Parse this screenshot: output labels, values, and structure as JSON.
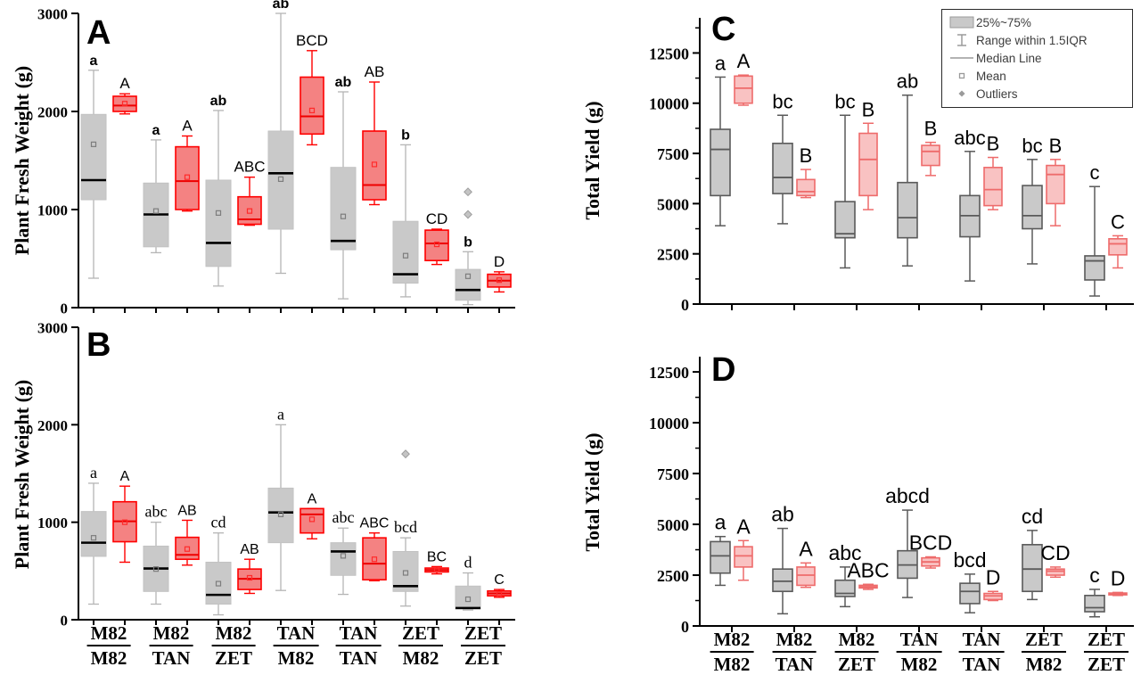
{
  "figure": {
    "description": "Four-panel box plot figure comparing grafting combinations (scion/rootstock) of M82, TAN, ZET tomato lines"
  },
  "legend": {
    "items": [
      {
        "icon": "box-swatch-icon",
        "label": "25%~75%"
      },
      {
        "icon": "whisker-icon",
        "label": "Range within 1.5IQR"
      },
      {
        "icon": "median-line-icon",
        "label": "Median Line"
      },
      {
        "icon": "mean-square-icon",
        "label": "Mean"
      },
      {
        "icon": "outlier-diamond-icon",
        "label": "Outliers"
      }
    ]
  },
  "colors": {
    "gray_fill": "#c9c9c9",
    "grayAB_edge": "#c2c2c2",
    "grayAB_whisker": "#b5b5b5",
    "grayAB_median": "#000000",
    "grayAB_mean": "#7d7d7d",
    "redAB_fill": "#f48282",
    "redAB_edge": "#ff0000",
    "redAB_median": "#ee0000",
    "redAB_mean": "#ff2a2a",
    "grayCD_edge": "#5a5a5a",
    "grayCD_median": "#5a5a5a",
    "redCD_fill": "#f9c2c2",
    "redCD_edge": "#ee6b6b",
    "redCD_median": "#ee6b6b",
    "outlier_fill": "#c4c4c4",
    "outlier_edge": "#9e9e9e",
    "axis": "#000000"
  },
  "chart_data": [
    {
      "id": "A",
      "panel_label": "A",
      "type": "box",
      "ylabel": "Plant Fresh Weight (g)",
      "ylim": [
        0,
        3000
      ],
      "yticks": [
        0,
        1000,
        2000,
        3000
      ],
      "minor_step": null,
      "categories": [
        {
          "top": "M82",
          "bottom": "M82"
        },
        {
          "top": "M82",
          "bottom": "TAN"
        },
        {
          "top": "M82",
          "bottom": "ZET"
        },
        {
          "top": "TAN",
          "bottom": "M82"
        },
        {
          "top": "TAN",
          "bottom": "TAN"
        },
        {
          "top": "ZET",
          "bottom": "M82"
        },
        {
          "top": "ZET",
          "bottom": "ZET"
        }
      ],
      "series": [
        {
          "name": "gray",
          "style": "grayAB",
          "boxes": [
            {
              "lo": 300,
              "q1": 1100,
              "med": 1300,
              "q3": 1970,
              "hi": 2420,
              "mean": 1665,
              "letter": "a",
              "out": []
            },
            {
              "lo": 560,
              "q1": 620,
              "med": 950,
              "q3": 1270,
              "hi": 1710,
              "mean": 985,
              "letter": "a",
              "out": []
            },
            {
              "lo": 220,
              "q1": 420,
              "med": 660,
              "q3": 1300,
              "hi": 2010,
              "mean": 965,
              "letter": "ab",
              "out": []
            },
            {
              "lo": 350,
              "q1": 800,
              "med": 1370,
              "q3": 1800,
              "hi": 3000,
              "mean": 1310,
              "letter": "ab",
              "out": []
            },
            {
              "lo": 90,
              "q1": 590,
              "med": 680,
              "q3": 1430,
              "hi": 2200,
              "mean": 930,
              "letter": "ab",
              "out": []
            },
            {
              "lo": 110,
              "q1": 250,
              "med": 340,
              "q3": 880,
              "hi": 1660,
              "mean": 530,
              "letter": "b",
              "out": []
            },
            {
              "lo": 30,
              "q1": 75,
              "med": 180,
              "q3": 390,
              "hi": 570,
              "mean": 320,
              "letter": "b",
              "out": [
                950,
                1180
              ]
            }
          ]
        },
        {
          "name": "red",
          "style": "redAB",
          "boxes": [
            {
              "lo": 1975,
              "q1": 2000,
              "med": 2060,
              "q3": 2155,
              "hi": 2180,
              "mean": 2080,
              "letter": "A",
              "out": []
            },
            {
              "lo": 985,
              "q1": 1000,
              "med": 1290,
              "q3": 1640,
              "hi": 1750,
              "mean": 1330,
              "letter": "A",
              "out": []
            },
            {
              "lo": 840,
              "q1": 850,
              "med": 900,
              "q3": 1130,
              "hi": 1330,
              "mean": 985,
              "letter": "ABC",
              "out": []
            },
            {
              "lo": 1660,
              "q1": 1770,
              "med": 1950,
              "q3": 2350,
              "hi": 2620,
              "mean": 2010,
              "letter": "BCD",
              "out": []
            },
            {
              "lo": 1050,
              "q1": 1100,
              "med": 1250,
              "q3": 1800,
              "hi": 2300,
              "mean": 1460,
              "letter": "AB",
              "out": []
            },
            {
              "lo": 440,
              "q1": 480,
              "med": 655,
              "q3": 790,
              "hi": 800,
              "mean": 645,
              "letter": "CD",
              "out": []
            },
            {
              "lo": 160,
              "q1": 210,
              "med": 275,
              "q3": 340,
              "hi": 365,
              "mean": 280,
              "letter": "D",
              "out": []
            }
          ]
        }
      ]
    },
    {
      "id": "B",
      "panel_label": "B",
      "type": "box",
      "ylabel": "Plant Fresh Weight (g)",
      "ylim": [
        0,
        3000
      ],
      "yticks": [
        0,
        1000,
        2000,
        3000
      ],
      "minor_step": null,
      "categories": [
        {
          "top": "M82",
          "bottom": "M82"
        },
        {
          "top": "M82",
          "bottom": "TAN"
        },
        {
          "top": "M82",
          "bottom": "ZET"
        },
        {
          "top": "TAN",
          "bottom": "M82"
        },
        {
          "top": "TAN",
          "bottom": "TAN"
        },
        {
          "top": "ZET",
          "bottom": "M82"
        },
        {
          "top": "ZET",
          "bottom": "ZET"
        }
      ],
      "series": [
        {
          "name": "gray",
          "style": "grayAB",
          "boxes": [
            {
              "lo": 160,
              "q1": 650,
              "med": 790,
              "q3": 1110,
              "hi": 1400,
              "mean": 840,
              "letter": "a",
              "out": []
            },
            {
              "lo": 160,
              "q1": 290,
              "med": 525,
              "q3": 755,
              "hi": 1000,
              "mean": 520,
              "letter": "abc",
              "out": []
            },
            {
              "lo": 50,
              "q1": 160,
              "med": 255,
              "q3": 590,
              "hi": 890,
              "mean": 370,
              "letter": "cd",
              "out": []
            },
            {
              "lo": 300,
              "q1": 790,
              "med": 1100,
              "q3": 1350,
              "hi": 2000,
              "mean": 1080,
              "letter": "a",
              "out": []
            },
            {
              "lo": 260,
              "q1": 455,
              "med": 700,
              "q3": 790,
              "hi": 940,
              "mean": 655,
              "letter": "abc",
              "out": []
            },
            {
              "lo": 140,
              "q1": 290,
              "med": 345,
              "q3": 700,
              "hi": 840,
              "mean": 480,
              "letter": "bcd",
              "out": [
                1700
              ]
            },
            {
              "lo": 100,
              "q1": 110,
              "med": 120,
              "q3": 345,
              "hi": 480,
              "mean": 210,
              "letter": "d",
              "out": []
            }
          ]
        },
        {
          "name": "red",
          "style": "redAB",
          "boxes": [
            {
              "lo": 590,
              "q1": 800,
              "med": 1010,
              "q3": 1210,
              "hi": 1370,
              "mean": 1000,
              "letter": "A",
              "out": []
            },
            {
              "lo": 560,
              "q1": 620,
              "med": 665,
              "q3": 845,
              "hi": 1020,
              "mean": 725,
              "letter": "AB",
              "out": []
            },
            {
              "lo": 270,
              "q1": 310,
              "med": 420,
              "q3": 520,
              "hi": 620,
              "mean": 430,
              "letter": "AB",
              "out": []
            },
            {
              "lo": 830,
              "q1": 890,
              "med": 1080,
              "q3": 1140,
              "hi": 1140,
              "mean": 1030,
              "letter": "A",
              "out": []
            },
            {
              "lo": 400,
              "q1": 410,
              "med": 575,
              "q3": 840,
              "hi": 890,
              "mean": 620,
              "letter": "ABC",
              "out": []
            },
            {
              "lo": 470,
              "q1": 490,
              "med": 510,
              "q3": 530,
              "hi": 545,
              "mean": 510,
              "letter": "BC",
              "out": []
            },
            {
              "lo": 230,
              "q1": 245,
              "med": 270,
              "q3": 295,
              "hi": 310,
              "mean": 265,
              "letter": "C",
              "out": []
            }
          ]
        }
      ]
    },
    {
      "id": "C",
      "panel_label": "C",
      "type": "box",
      "ylabel": "Total Yield (g)",
      "ylim": [
        0,
        14250
      ],
      "yticks": [
        0,
        2500,
        5000,
        7500,
        10000,
        12500
      ],
      "minor_step": 1250,
      "categories": [
        {
          "top": "M82",
          "bottom": "M82"
        },
        {
          "top": "M82",
          "bottom": "TAN"
        },
        {
          "top": "M82",
          "bottom": "ZET"
        },
        {
          "top": "TAN",
          "bottom": "M82"
        },
        {
          "top": "TAN",
          "bottom": "TAN"
        },
        {
          "top": "ZET",
          "bottom": "M82"
        },
        {
          "top": "ZET",
          "bottom": "ZET"
        }
      ],
      "series": [
        {
          "name": "gray",
          "style": "grayCD",
          "boxes": [
            {
              "lo": 3900,
              "q1": 5400,
              "med": 7700,
              "q3": 8700,
              "hi": 11300,
              "mean": null,
              "letter": "a",
              "out": []
            },
            {
              "lo": 4000,
              "q1": 5500,
              "med": 6300,
              "q3": 8000,
              "hi": 9400,
              "mean": null,
              "letter": "bc",
              "out": []
            },
            {
              "lo": 1800,
              "q1": 3300,
              "med": 3500,
              "q3": 5100,
              "hi": 9400,
              "mean": null,
              "letter": "bc",
              "out": []
            },
            {
              "lo": 1900,
              "q1": 3300,
              "med": 4300,
              "q3": 6050,
              "hi": 10400,
              "mean": null,
              "letter": "ab",
              "out": []
            },
            {
              "lo": 1150,
              "q1": 3350,
              "med": 4400,
              "q3": 5400,
              "hi": 7600,
              "mean": null,
              "letter": "abc",
              "out": []
            },
            {
              "lo": 2000,
              "q1": 3750,
              "med": 4400,
              "q3": 5900,
              "hi": 7200,
              "mean": null,
              "letter": "bc",
              "out": []
            },
            {
              "lo": 400,
              "q1": 1200,
              "med": 2150,
              "q3": 2400,
              "hi": 5850,
              "mean": null,
              "letter": "c",
              "out": []
            }
          ]
        },
        {
          "name": "red",
          "style": "redCD",
          "boxes": [
            {
              "lo": 9900,
              "q1": 10000,
              "med": 10750,
              "q3": 11350,
              "hi": 11400,
              "mean": null,
              "letter": "A",
              "out": []
            },
            {
              "lo": 5300,
              "q1": 5400,
              "med": 5600,
              "q3": 6200,
              "hi": 6700,
              "mean": null,
              "letter": "B",
              "out": []
            },
            {
              "lo": 4700,
              "q1": 5400,
              "med": 7200,
              "q3": 8500,
              "hi": 9000,
              "mean": null,
              "letter": "B",
              "out": []
            },
            {
              "lo": 6400,
              "q1": 6900,
              "med": 7600,
              "q3": 7900,
              "hi": 8050,
              "mean": null,
              "letter": "B",
              "out": []
            },
            {
              "lo": 4700,
              "q1": 4900,
              "med": 5700,
              "q3": 6800,
              "hi": 7300,
              "mean": null,
              "letter": "B",
              "out": []
            },
            {
              "lo": 3900,
              "q1": 5000,
              "med": 6450,
              "q3": 6900,
              "hi": 7200,
              "mean": null,
              "letter": "B",
              "out": []
            },
            {
              "lo": 1800,
              "q1": 2450,
              "med": 3000,
              "q3": 3250,
              "hi": 3400,
              "mean": null,
              "letter": "C",
              "out": []
            }
          ]
        }
      ]
    },
    {
      "id": "D",
      "panel_label": "D",
      "type": "box",
      "ylabel": "Total Yield (g)",
      "ylim": [
        0,
        13250
      ],
      "yticks": [
        0,
        2500,
        5000,
        7500,
        10000,
        12500
      ],
      "minor_step": 1250,
      "categories": [
        {
          "top": "M82",
          "bottom": "M82"
        },
        {
          "top": "M82",
          "bottom": "TAN"
        },
        {
          "top": "M82",
          "bottom": "ZET"
        },
        {
          "top": "TAN",
          "bottom": "M82"
        },
        {
          "top": "TAN",
          "bottom": "TAN"
        },
        {
          "top": "ZET",
          "bottom": "M82"
        },
        {
          "top": "ZET",
          "bottom": "ZET"
        }
      ],
      "series": [
        {
          "name": "gray",
          "style": "grayCD",
          "boxes": [
            {
              "lo": 2000,
              "q1": 2600,
              "med": 3450,
              "q3": 4150,
              "hi": 4400,
              "mean": null,
              "letter": "a",
              "out": []
            },
            {
              "lo": 600,
              "q1": 1700,
              "med": 2200,
              "q3": 2800,
              "hi": 4800,
              "mean": null,
              "letter": "ab",
              "out": []
            },
            {
              "lo": 950,
              "q1": 1450,
              "med": 1600,
              "q3": 2250,
              "hi": 2900,
              "mean": null,
              "letter": "abc",
              "out": []
            },
            {
              "lo": 1400,
              "q1": 2350,
              "med": 3000,
              "q3": 3700,
              "hi": 5700,
              "mean": null,
              "letter": "abcd",
              "out": []
            },
            {
              "lo": 650,
              "q1": 1100,
              "med": 1700,
              "q3": 2100,
              "hi": 2550,
              "mean": null,
              "letter": "bcd",
              "out": []
            },
            {
              "lo": 1300,
              "q1": 1700,
              "med": 2800,
              "q3": 4000,
              "hi": 4700,
              "mean": null,
              "letter": "cd",
              "out": []
            },
            {
              "lo": 450,
              "q1": 700,
              "med": 900,
              "q3": 1500,
              "hi": 1800,
              "mean": null,
              "letter": "c",
              "out": []
            }
          ]
        },
        {
          "name": "red",
          "style": "redCD",
          "boxes": [
            {
              "lo": 2250,
              "q1": 2900,
              "med": 3450,
              "q3": 3900,
              "hi": 4200,
              "mean": null,
              "letter": "A",
              "out": []
            },
            {
              "lo": 1900,
              "q1": 2000,
              "med": 2500,
              "q3": 2900,
              "hi": 3100,
              "mean": null,
              "letter": "A",
              "out": []
            },
            {
              "lo": 1800,
              "q1": 1870,
              "med": 1930,
              "q3": 2000,
              "hi": 2050,
              "mean": null,
              "letter": "ABC",
              "out": []
            },
            {
              "lo": 2850,
              "q1": 2950,
              "med": 3150,
              "q3": 3350,
              "hi": 3400,
              "mean": null,
              "letter": "BCD",
              "out": []
            },
            {
              "lo": 1250,
              "q1": 1300,
              "med": 1480,
              "q3": 1600,
              "hi": 1700,
              "mean": null,
              "letter": "D",
              "out": []
            },
            {
              "lo": 2400,
              "q1": 2500,
              "med": 2700,
              "q3": 2800,
              "hi": 2900,
              "mean": null,
              "letter": "CD",
              "out": []
            },
            {
              "lo": 1500,
              "q1": 1530,
              "med": 1570,
              "q3": 1620,
              "hi": 1650,
              "mean": null,
              "letter": "D",
              "out": []
            }
          ]
        }
      ]
    }
  ]
}
